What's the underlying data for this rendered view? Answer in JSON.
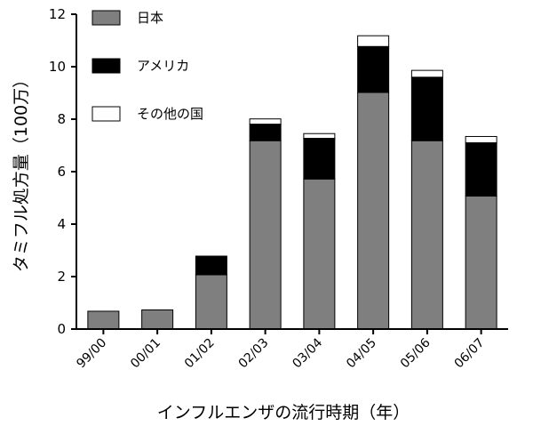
{
  "chart_data": {
    "type": "bar",
    "stacked": true,
    "title": "",
    "xlabel": "インフルエンザの流行時期（年）",
    "ylabel": "タミフル処方量（100万）",
    "ylim": [
      0,
      12
    ],
    "yticks": [
      0,
      2,
      4,
      6,
      8,
      10,
      12
    ],
    "grid": false,
    "legend_position": "top-left",
    "categories": [
      "99/00",
      "00/01",
      "01/02",
      "02/03",
      "03/04",
      "04/05",
      "05/06",
      "06/07"
    ],
    "series": [
      {
        "name": "日本",
        "color": "#7f7f7f",
        "values": [
          0.68,
          0.73,
          2.07,
          7.18,
          5.72,
          9.02,
          7.18,
          5.07
        ]
      },
      {
        "name": "アメリカ",
        "color": "#000000",
        "values": [
          0.0,
          0.0,
          0.71,
          0.63,
          1.55,
          1.75,
          2.42,
          2.03
        ]
      },
      {
        "name": "その他の国",
        "color": "#ffffff",
        "values": [
          0.0,
          0.0,
          0.0,
          0.2,
          0.18,
          0.41,
          0.26,
          0.24
        ]
      }
    ]
  }
}
